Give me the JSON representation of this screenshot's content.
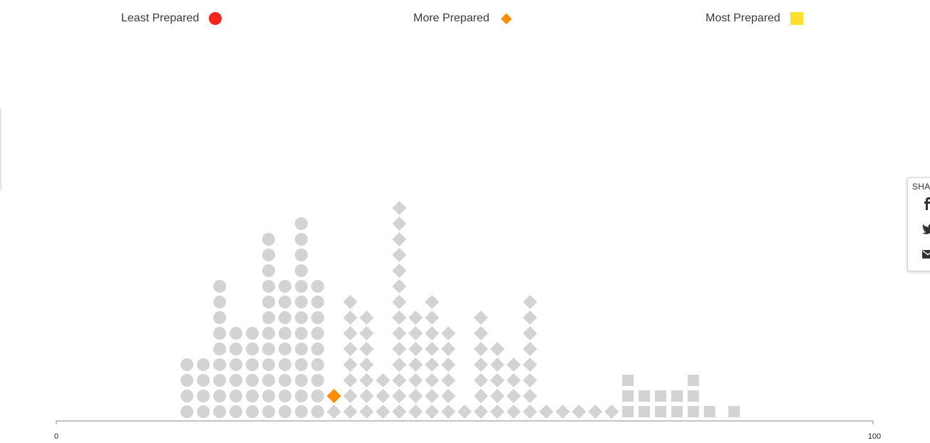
{
  "legend": {
    "items": [
      {
        "label": "Least Prepared",
        "shape": "circle",
        "color": "#f5251c"
      },
      {
        "label": "More Prepared",
        "shape": "diamond",
        "color": "#ff8c05"
      },
      {
        "label": "Most Prepared",
        "shape": "square",
        "color": "#fde02c"
      }
    ]
  },
  "share": {
    "title": "SHA",
    "icons": [
      "facebook-icon",
      "twitter-icon",
      "email-icon"
    ]
  },
  "colors": {
    "inactive": "#d3d3d3",
    "axis": "#888888",
    "highlight": "#ff8c05"
  },
  "chart_data": {
    "type": "scatter",
    "subtype": "unit dot histogram",
    "xlim": [
      0,
      100
    ],
    "x_tick_labels": [
      "0",
      "100"
    ],
    "title": "",
    "xlabel": "",
    "ylabel": "",
    "grid": false,
    "legend_position": "top",
    "categories": [
      "Least Prepared",
      "Least Prepared",
      "Least Prepared",
      "Least Prepared",
      "Least Prepared",
      "Least Prepared",
      "Least Prepared",
      "Least Prepared",
      "Least Prepared",
      "More Prepared",
      "More Prepared",
      "More Prepared",
      "More Prepared",
      "More Prepared",
      "More Prepared",
      "More Prepared",
      "More Prepared",
      "More Prepared",
      "More Prepared",
      "More Prepared",
      "More Prepared",
      "More Prepared",
      "More Prepared",
      "More Prepared",
      "More Prepared",
      "More Prepared",
      "More Prepared",
      "Most Prepared",
      "Most Prepared",
      "Most Prepared",
      "Most Prepared",
      "Most Prepared",
      "Most Prepared",
      "Most Prepared"
    ],
    "x": [
      16,
      18,
      20,
      22,
      24,
      26,
      28,
      30,
      32,
      34,
      36,
      38,
      40,
      42,
      44,
      46,
      48,
      50,
      52,
      54,
      56,
      58,
      60,
      62,
      64,
      66,
      68,
      70,
      72,
      74,
      76,
      78,
      80,
      83
    ],
    "counts": [
      4,
      4,
      9,
      6,
      6,
      12,
      9,
      13,
      9,
      2,
      8,
      7,
      3,
      14,
      7,
      8,
      6,
      1,
      7,
      5,
      4,
      8,
      1,
      1,
      1,
      1,
      1,
      3,
      2,
      2,
      2,
      3,
      1,
      1
    ],
    "highlight": {
      "x": 34,
      "category": "More Prepared"
    }
  }
}
